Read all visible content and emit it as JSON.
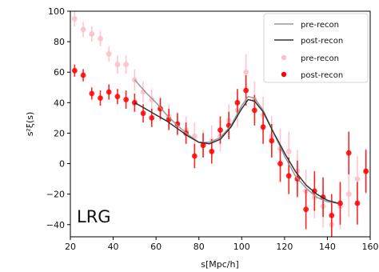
{
  "chart_data": {
    "type": "scatter",
    "title": "",
    "panel_label": "LRG",
    "xlabel": "s[Mpc/h]",
    "ylabel": "s²ξ(s)",
    "xlim": [
      20,
      160
    ],
    "ylim": [
      -48,
      100
    ],
    "x_ticks": [
      20,
      40,
      60,
      80,
      100,
      120,
      140,
      160
    ],
    "y_ticks": [
      -40,
      -20,
      0,
      20,
      40,
      60,
      80,
      100
    ],
    "x_tick_labels": [
      "20",
      "40",
      "60",
      "80",
      "100",
      "120",
      "140",
      "160"
    ],
    "y_tick_labels": [
      "−40",
      "−20",
      "0",
      "20",
      "40",
      "60",
      "80",
      "100"
    ],
    "grid": false,
    "legend_position": "top-right",
    "legend": [
      {
        "label": "pre-recon",
        "kind": "line",
        "color": "#999999"
      },
      {
        "label": "post-recon",
        "kind": "line",
        "color": "#333333"
      },
      {
        "label": "pre-recon",
        "kind": "marker",
        "color": "#ffc0cb"
      },
      {
        "label": "post-recon",
        "kind": "marker",
        "color": "#ff0000"
      }
    ],
    "lines": [
      {
        "label": "pre-recon",
        "color": "#999999",
        "x": [
          50,
          55,
          60,
          65,
          70,
          75,
          80,
          85,
          90,
          95,
          100,
          103,
          106,
          110,
          115,
          120,
          125,
          130,
          135,
          140,
          145
        ],
        "y": [
          55,
          47,
          40,
          32,
          25,
          19,
          14,
          14,
          17,
          25,
          38,
          44,
          43,
          35,
          20,
          5,
          -8,
          -16,
          -22,
          -25,
          -26
        ]
      },
      {
        "label": "post-recon",
        "color": "#333333",
        "x": [
          50,
          55,
          60,
          65,
          70,
          75,
          80,
          85,
          90,
          95,
          100,
          103,
          106,
          110,
          115,
          120,
          125,
          130,
          135,
          140,
          145
        ],
        "y": [
          40,
          36,
          32,
          28,
          23,
          18,
          14,
          13,
          16,
          24,
          36,
          42,
          41,
          34,
          20,
          7,
          -5,
          -14,
          -20,
          -24,
          -26
        ]
      }
    ],
    "series": [
      {
        "name": "pre-recon",
        "color": "#ffc0cb",
        "x": [
          22,
          26,
          30,
          34,
          38,
          42,
          46,
          50,
          54,
          58,
          62,
          66,
          70,
          74,
          78,
          82,
          86,
          90,
          94,
          98,
          102,
          106,
          110,
          114,
          118,
          122,
          126,
          130,
          134,
          138,
          142,
          146,
          150,
          154,
          158
        ],
        "y": [
          95,
          88,
          85,
          82,
          72,
          65,
          65,
          55,
          47,
          42,
          36,
          31,
          26,
          22,
          18,
          13,
          15,
          18,
          28,
          35,
          60,
          42,
          32,
          18,
          10,
          8,
          -5,
          -18,
          -22,
          -28,
          -40,
          -28,
          -20,
          -10,
          -5
        ],
        "err": [
          5,
          5,
          5,
          5,
          5,
          6,
          6,
          7,
          7,
          7,
          8,
          8,
          8,
          9,
          9,
          9,
          10,
          10,
          11,
          11,
          12,
          12,
          12,
          13,
          13,
          13,
          14,
          14,
          14,
          14,
          15,
          15,
          15,
          15,
          15
        ]
      },
      {
        "name": "post-recon",
        "color": "#ff0000",
        "x": [
          22,
          26,
          30,
          34,
          38,
          42,
          46,
          50,
          54,
          58,
          62,
          66,
          70,
          74,
          78,
          82,
          86,
          90,
          94,
          98,
          102,
          106,
          110,
          114,
          118,
          122,
          126,
          130,
          134,
          138,
          142,
          146,
          150,
          154,
          158
        ],
        "y": [
          61,
          58,
          46,
          43,
          47,
          44,
          42,
          40,
          33,
          30,
          36,
          29,
          26,
          20,
          5,
          12,
          8,
          22,
          25,
          40,
          48,
          35,
          24,
          15,
          0,
          -8,
          -10,
          -30,
          -18,
          -22,
          -34,
          -26,
          7,
          -26,
          -5
        ],
        "err": [
          4,
          4,
          4,
          5,
          5,
          5,
          6,
          6,
          6,
          6,
          7,
          7,
          7,
          7,
          8,
          8,
          8,
          9,
          9,
          9,
          10,
          10,
          11,
          11,
          12,
          12,
          12,
          13,
          13,
          13,
          14,
          14,
          14,
          14,
          14
        ]
      }
    ]
  }
}
